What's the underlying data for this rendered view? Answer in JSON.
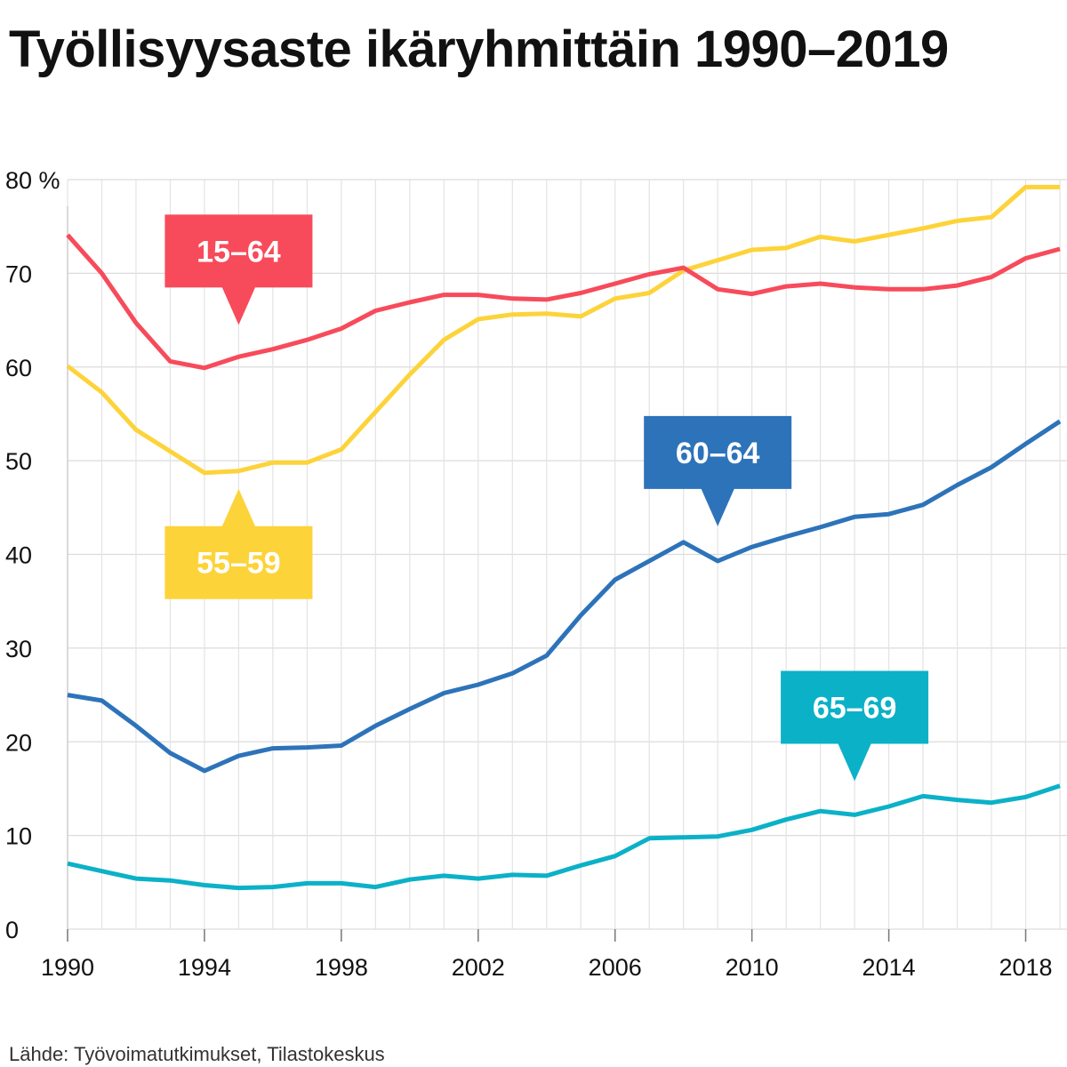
{
  "title": "Työllisyysaste ikäryhmittäin 1990–2019",
  "source": "Lähde: Työvoimatutkimukset, Tilastokeskus",
  "chart_data": {
    "type": "line",
    "title": "Työllisyysaste ikäryhmittäin 1990–2019",
    "xlabel": "",
    "ylabel": "",
    "y_unit_label": "80 %",
    "ylim": [
      0,
      80
    ],
    "y_ticks": [
      0,
      10,
      20,
      30,
      40,
      50,
      60,
      70,
      80
    ],
    "y_tick_labels": [
      "0",
      "10",
      "20",
      "30",
      "40",
      "50",
      "60",
      "70",
      "80 %"
    ],
    "xlim": [
      1990,
      2019
    ],
    "x_ticks": [
      1990,
      1994,
      1998,
      2002,
      2006,
      2010,
      2014,
      2018
    ],
    "x_tick_labels": [
      "1990",
      "1994",
      "1998",
      "2002",
      "2006",
      "2010",
      "2014",
      "2018"
    ],
    "x": [
      1990,
      1991,
      1992,
      1993,
      1994,
      1995,
      1996,
      1997,
      1998,
      1999,
      2000,
      2001,
      2002,
      2003,
      2004,
      2005,
      2006,
      2007,
      2008,
      2009,
      2010,
      2011,
      2012,
      2013,
      2014,
      2015,
      2016,
      2017,
      2018,
      2019
    ],
    "grid": true,
    "legend": "inline callouts",
    "series": [
      {
        "name": "15–64",
        "color": "#f74b5b",
        "values": [
          74.1,
          70.0,
          64.7,
          60.6,
          59.9,
          61.1,
          61.9,
          62.9,
          64.1,
          66.0,
          66.9,
          67.7,
          67.7,
          67.3,
          67.2,
          67.9,
          68.9,
          69.9,
          70.6,
          68.3,
          67.8,
          68.6,
          68.9,
          68.5,
          68.3,
          68.3,
          68.7,
          69.6,
          71.6,
          72.6
        ],
        "callout_year": 1995,
        "callout_value": 64.5
      },
      {
        "name": "55–59",
        "color": "#fdd33a",
        "values": [
          60.1,
          57.3,
          53.3,
          51.0,
          48.7,
          48.9,
          49.8,
          49.8,
          51.2,
          55.2,
          59.2,
          62.9,
          65.1,
          65.6,
          65.7,
          65.4,
          67.3,
          67.9,
          70.3,
          71.4,
          72.5,
          72.7,
          73.9,
          73.4,
          74.1,
          74.8,
          75.6,
          76.0,
          79.2,
          79.2
        ],
        "callout_year": 1995,
        "callout_value": 47.0
      },
      {
        "name": "60–64",
        "color": "#2d73ba",
        "values": [
          25.0,
          24.4,
          21.7,
          18.8,
          16.9,
          18.5,
          19.3,
          19.4,
          19.6,
          21.7,
          23.5,
          25.2,
          26.1,
          27.3,
          29.2,
          33.5,
          37.3,
          39.3,
          41.3,
          39.3,
          40.8,
          41.9,
          42.9,
          44.0,
          44.3,
          45.3,
          47.4,
          49.3,
          51.8,
          54.2
        ],
        "callout_year": 2009,
        "callout_value": 43.0
      },
      {
        "name": "65–69",
        "color": "#0bb1c7",
        "values": [
          7.0,
          6.2,
          5.4,
          5.2,
          4.7,
          4.4,
          4.5,
          4.9,
          4.9,
          4.5,
          5.3,
          5.7,
          5.4,
          5.8,
          5.7,
          6.8,
          7.8,
          9.7,
          9.8,
          9.9,
          10.6,
          11.7,
          12.6,
          12.2,
          13.1,
          14.2,
          13.8,
          13.5,
          14.1,
          15.3
        ],
        "callout_year": 2013,
        "callout_value": 15.8
      }
    ]
  }
}
